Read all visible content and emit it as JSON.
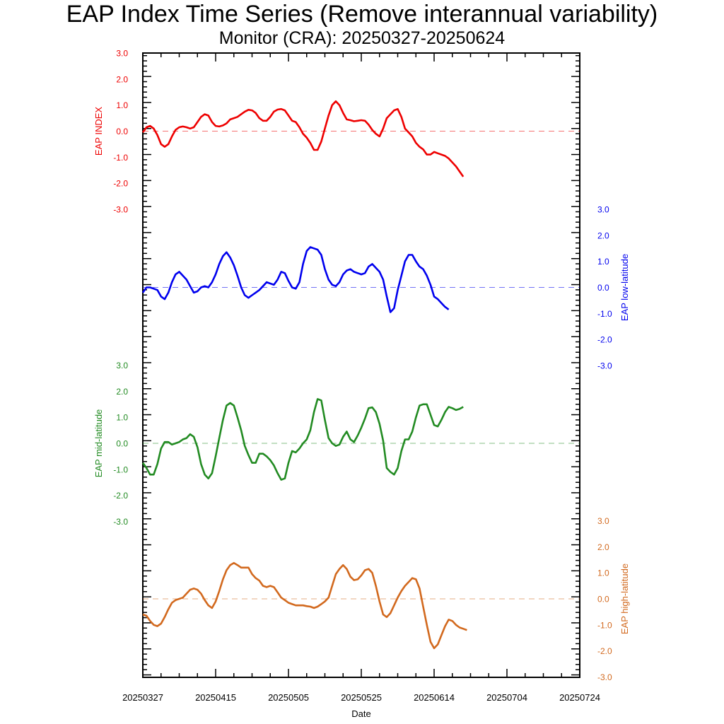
{
  "title": "EAP Index Time Series (Remove interannual variability)",
  "subtitle": "Monitor (CRA): 20250327-20250624",
  "xlabel": "Date",
  "chart_data": {
    "type": "line",
    "x_tick_labels": [
      "20250327",
      "20250415",
      "20250505",
      "20250525",
      "20250614",
      "20250704",
      "20250724"
    ],
    "x_range_days": [
      0,
      119
    ],
    "grid": false,
    "y_tick_labels": [
      "3.0",
      "2.0",
      "1.0",
      "0.0",
      "-1.0",
      "-2.0",
      "-3.0"
    ],
    "series": [
      {
        "name": "EAP INDEX",
        "color": "#ee0000",
        "axis": "left",
        "ylim": [
          -3,
          3
        ],
        "values": [
          -0.05,
          0.15,
          0.2,
          0.1,
          -0.15,
          -0.5,
          -0.6,
          -0.5,
          -0.2,
          0.05,
          0.15,
          0.18,
          0.15,
          0.1,
          0.15,
          0.35,
          0.55,
          0.65,
          0.6,
          0.35,
          0.2,
          0.18,
          0.22,
          0.3,
          0.45,
          0.5,
          0.55,
          0.65,
          0.75,
          0.82,
          0.8,
          0.7,
          0.5,
          0.4,
          0.4,
          0.55,
          0.75,
          0.83,
          0.85,
          0.8,
          0.6,
          0.4,
          0.35,
          0.15,
          -0.1,
          -0.25,
          -0.45,
          -0.72,
          -0.72,
          -0.4,
          0.1,
          0.6,
          1.0,
          1.15,
          1.0,
          0.7,
          0.45,
          0.42,
          0.38,
          0.4,
          0.42,
          0.4,
          0.25,
          0.05,
          -0.1,
          -0.2,
          0.1,
          0.5,
          0.65,
          0.8,
          0.85,
          0.55,
          0.1,
          -0.05,
          -0.2,
          -0.45,
          -0.6,
          -0.7,
          -0.9,
          -0.9,
          -0.8,
          -0.85,
          -0.9,
          -0.95,
          -1.05,
          -1.2,
          -1.35,
          -1.55,
          -1.75
        ]
      },
      {
        "name": "EAP low-latitude",
        "color": "#0000ee",
        "axis": "right",
        "ylim": [
          -3,
          3
        ],
        "values": [
          -0.2,
          0.0,
          0.0,
          -0.05,
          -0.1,
          -0.35,
          -0.45,
          -0.2,
          0.2,
          0.5,
          0.6,
          0.45,
          0.3,
          0.05,
          -0.2,
          -0.15,
          0.0,
          0.05,
          0.0,
          0.2,
          0.5,
          0.9,
          1.2,
          1.35,
          1.15,
          0.85,
          0.45,
          0.0,
          -0.3,
          -0.4,
          -0.3,
          -0.2,
          -0.1,
          0.05,
          0.2,
          0.15,
          0.1,
          0.3,
          0.6,
          0.55,
          0.25,
          0.0,
          -0.05,
          0.2,
          0.9,
          1.4,
          1.55,
          1.5,
          1.45,
          1.25,
          0.7,
          0.3,
          0.1,
          0.05,
          0.2,
          0.5,
          0.65,
          0.7,
          0.6,
          0.55,
          0.5,
          0.55,
          0.8,
          0.9,
          0.75,
          0.6,
          0.3,
          -0.35,
          -0.95,
          -0.8,
          -0.1,
          0.45,
          1.0,
          1.25,
          1.25,
          1.0,
          0.8,
          0.7,
          0.45,
          0.1,
          -0.35,
          -0.45,
          -0.6,
          -0.75,
          -0.85
        ]
      },
      {
        "name": "EAP mid-latitude",
        "color": "#228b22",
        "axis": "left",
        "ylim": [
          -3,
          3
        ],
        "values": [
          -0.75,
          -0.95,
          -1.2,
          -1.2,
          -0.8,
          -0.2,
          0.05,
          0.05,
          -0.05,
          0.0,
          0.05,
          0.15,
          0.2,
          0.35,
          0.25,
          -0.15,
          -0.8,
          -1.2,
          -1.35,
          -1.15,
          -0.5,
          0.2,
          0.9,
          1.45,
          1.55,
          1.45,
          1.0,
          0.5,
          -0.1,
          -0.45,
          -0.75,
          -0.75,
          -0.4,
          -0.4,
          -0.5,
          -0.65,
          -0.85,
          -1.15,
          -1.4,
          -1.35,
          -0.75,
          -0.3,
          -0.35,
          -0.2,
          0.0,
          0.15,
          0.5,
          1.2,
          1.7,
          1.65,
          0.9,
          0.2,
          0.0,
          -0.1,
          -0.05,
          0.25,
          0.45,
          0.15,
          0.05,
          0.3,
          0.6,
          0.95,
          1.35,
          1.38,
          1.2,
          0.75,
          0.1,
          -0.95,
          -1.1,
          -1.2,
          -0.95,
          -0.3,
          0.15,
          0.15,
          0.45,
          1.0,
          1.45,
          1.5,
          1.5,
          1.1,
          0.7,
          0.65,
          0.9,
          1.2,
          1.4,
          1.35,
          1.28,
          1.32,
          1.4
        ]
      },
      {
        "name": "EAP high-latitude",
        "color": "#d2691e",
        "axis": "right",
        "ylim": [
          -3,
          3
        ],
        "values": [
          -0.6,
          -0.65,
          -0.85,
          -1.0,
          -1.05,
          -0.95,
          -0.7,
          -0.4,
          -0.15,
          -0.05,
          0.0,
          0.05,
          0.2,
          0.35,
          0.4,
          0.35,
          0.2,
          -0.05,
          -0.25,
          -0.35,
          -0.1,
          0.3,
          0.75,
          1.1,
          1.3,
          1.38,
          1.3,
          1.2,
          1.2,
          1.2,
          0.95,
          0.8,
          0.7,
          0.5,
          0.45,
          0.5,
          0.45,
          0.25,
          0.05,
          -0.05,
          -0.15,
          -0.2,
          -0.25,
          -0.25,
          -0.25,
          -0.28,
          -0.3,
          -0.35,
          -0.3,
          -0.2,
          -0.1,
          0.05,
          0.5,
          0.95,
          1.15,
          1.3,
          1.15,
          0.85,
          0.72,
          0.75,
          0.9,
          1.1,
          1.15,
          1.0,
          0.5,
          -0.1,
          -0.6,
          -0.7,
          -0.55,
          -0.25,
          0.05,
          0.3,
          0.5,
          0.65,
          0.8,
          0.75,
          0.4,
          -0.3,
          -1.0,
          -1.65,
          -1.9,
          -1.75,
          -1.4,
          -1.05,
          -0.8,
          -0.85,
          -1.0,
          -1.1,
          -1.15,
          -1.2
        ]
      }
    ]
  }
}
